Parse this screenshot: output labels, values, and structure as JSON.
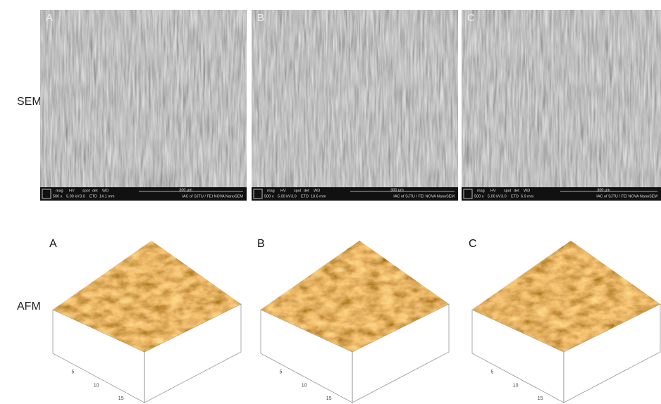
{
  "row_labels": [
    "SEM",
    "AFM"
  ],
  "sem_panels": [
    {
      "label": "A",
      "info_values": [
        "500 x",
        "5.00 kV",
        "3.0",
        "ETD",
        "14.1 mm"
      ]
    },
    {
      "label": "B",
      "info_values": [
        "500 x",
        "5.00 kV",
        "3.0",
        "ETD",
        "10.6 mm"
      ]
    },
    {
      "label": "C",
      "info_values": [
        "500 x",
        "5.00 kV",
        "3.0",
        "ETD",
        "6.9 mm"
      ]
    }
  ],
  "sem_info_headers": [
    "mag",
    "HV",
    "spot",
    "det",
    "WD"
  ],
  "sem_scale": "300 µm",
  "sem_footer": "IAC of SJTU / FEI NOVA NanoSEM",
  "afm_panels": [
    {
      "label": "A",
      "axis_ticks": [
        "5",
        "10",
        "15"
      ]
    },
    {
      "label": "B",
      "axis_ticks": [
        "5",
        "10",
        "15"
      ]
    },
    {
      "label": "C",
      "axis_ticks": [
        "5",
        "10",
        "15"
      ]
    }
  ]
}
